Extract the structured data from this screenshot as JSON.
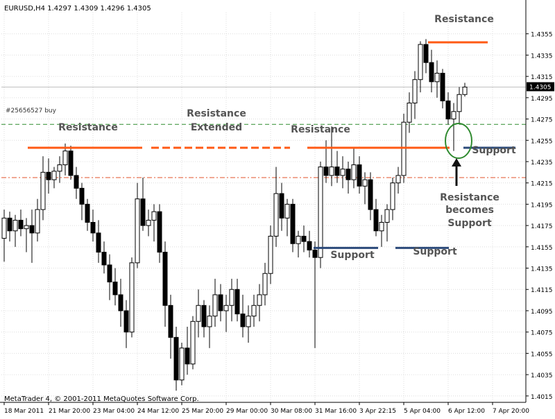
{
  "chart_data": {
    "type": "candlestick",
    "header": "EURUSD,H4  1.4297 1.4309 1.4296 1.4305",
    "order_label": "#25656527 buy",
    "copyright": "MetaTrader 4, © 2001-2011 MetaQuotes Software Corp.",
    "current_price": "1.4305",
    "ylim": [
      1.4009,
      1.4375
    ],
    "y_ticks": [
      "1.4355",
      "1.4335",
      "1.4315",
      "1.4295",
      "1.4275",
      "1.4255",
      "1.4235",
      "1.4215",
      "1.4195",
      "1.4175",
      "1.4155",
      "1.4135",
      "1.4115",
      "1.4095",
      "1.4075",
      "1.4055",
      "1.4035",
      "1.4015"
    ],
    "x_ticks": [
      {
        "i": 0,
        "label": "18 Mar 2011"
      },
      {
        "i": 8,
        "label": "21 Mar 20:00"
      },
      {
        "i": 16,
        "label": "23 Mar 04:00"
      },
      {
        "i": 24,
        "label": "24 Mar 12:00"
      },
      {
        "i": 32,
        "label": "25 Mar 20:00"
      },
      {
        "i": 40,
        "label": "29 Mar 00:00"
      },
      {
        "i": 48,
        "label": "30 Mar 08:00"
      },
      {
        "i": 56,
        "label": "31 Mar 16:00"
      },
      {
        "i": 64,
        "label": "3 Apr 22:15"
      },
      {
        "i": 72,
        "label": "5 Apr 04:00"
      },
      {
        "i": 80,
        "label": "6 Apr 12:00"
      },
      {
        "i": 88,
        "label": "7 Apr 20:00"
      }
    ],
    "candles": [
      [
        1.4163,
        1.419,
        1.4141,
        1.4182
      ],
      [
        1.4182,
        1.4188,
        1.416,
        1.417
      ],
      [
        1.417,
        1.4185,
        1.4155,
        1.418
      ],
      [
        1.418,
        1.419,
        1.4165,
        1.4172
      ],
      [
        1.4172,
        1.4182,
        1.415,
        1.4175
      ],
      [
        1.4175,
        1.419,
        1.414,
        1.4168
      ],
      [
        1.4168,
        1.42,
        1.416,
        1.419
      ],
      [
        1.419,
        1.424,
        1.418,
        1.4225
      ],
      [
        1.4225,
        1.4238,
        1.4205,
        1.4218
      ],
      [
        1.4218,
        1.423,
        1.421,
        1.4226
      ],
      [
        1.4226,
        1.424,
        1.4215,
        1.4232
      ],
      [
        1.4232,
        1.4252,
        1.4222,
        1.4245
      ],
      [
        1.4245,
        1.425,
        1.4218,
        1.4222
      ],
      [
        1.4222,
        1.423,
        1.42,
        1.421
      ],
      [
        1.421,
        1.4215,
        1.418,
        1.4195
      ],
      [
        1.4195,
        1.42,
        1.417,
        1.4178
      ],
      [
        1.4178,
        1.419,
        1.416,
        1.4168
      ],
      [
        1.4168,
        1.418,
        1.414,
        1.415
      ],
      [
        1.415,
        1.416,
        1.413,
        1.4138
      ],
      [
        1.4138,
        1.4148,
        1.4105,
        1.4122
      ],
      [
        1.4122,
        1.4135,
        1.41,
        1.411
      ],
      [
        1.411,
        1.4125,
        1.408,
        1.4095
      ],
      [
        1.4095,
        1.4105,
        1.406,
        1.4075
      ],
      [
        1.4075,
        1.4145,
        1.407,
        1.414
      ],
      [
        1.414,
        1.4215,
        1.4135,
        1.42
      ],
      [
        1.42,
        1.422,
        1.417,
        1.4175
      ],
      [
        1.4175,
        1.419,
        1.4165,
        1.418
      ],
      [
        1.418,
        1.4195,
        1.416,
        1.4188
      ],
      [
        1.4188,
        1.4195,
        1.414,
        1.415
      ],
      [
        1.415,
        1.416,
        1.408,
        1.41
      ],
      [
        1.41,
        1.411,
        1.405,
        1.407
      ],
      [
        1.407,
        1.408,
        1.402,
        1.403
      ],
      [
        1.403,
        1.4065,
        1.4025,
        1.406
      ],
      [
        1.406,
        1.408,
        1.4035,
        1.4045
      ],
      [
        1.4045,
        1.409,
        1.404,
        1.4085
      ],
      [
        1.4085,
        1.4115,
        1.407,
        1.41
      ],
      [
        1.41,
        1.4105,
        1.407,
        1.408
      ],
      [
        1.408,
        1.41,
        1.406,
        1.409
      ],
      [
        1.409,
        1.4125,
        1.408,
        1.411
      ],
      [
        1.411,
        1.412,
        1.4085,
        1.4095
      ],
      [
        1.4095,
        1.411,
        1.4075,
        1.41
      ],
      [
        1.41,
        1.4125,
        1.4085,
        1.4115
      ],
      [
        1.4115,
        1.4125,
        1.4085,
        1.4092
      ],
      [
        1.4092,
        1.411,
        1.407,
        1.408
      ],
      [
        1.408,
        1.41,
        1.4065,
        1.409
      ],
      [
        1.409,
        1.411,
        1.408,
        1.41
      ],
      [
        1.41,
        1.412,
        1.4085,
        1.411
      ],
      [
        1.411,
        1.414,
        1.41,
        1.413
      ],
      [
        1.413,
        1.4175,
        1.412,
        1.4165
      ],
      [
        1.4165,
        1.423,
        1.4155,
        1.4205
      ],
      [
        1.4205,
        1.4215,
        1.417,
        1.4182
      ],
      [
        1.4182,
        1.42,
        1.4165,
        1.4195
      ],
      [
        1.4195,
        1.42,
        1.415,
        1.4158
      ],
      [
        1.4158,
        1.417,
        1.4145,
        1.4165
      ],
      [
        1.4165,
        1.4175,
        1.415,
        1.416
      ],
      [
        1.416,
        1.417,
        1.4145,
        1.4152
      ],
      [
        1.4152,
        1.416,
        1.406,
        1.4145
      ],
      [
        1.4145,
        1.4235,
        1.4135,
        1.423
      ],
      [
        1.423,
        1.4255,
        1.4215,
        1.4222
      ],
      [
        1.4222,
        1.4268,
        1.4212,
        1.423
      ],
      [
        1.423,
        1.4245,
        1.4215,
        1.4222
      ],
      [
        1.4222,
        1.424,
        1.421,
        1.4228
      ],
      [
        1.4228,
        1.4235,
        1.4205,
        1.4218
      ],
      [
        1.4218,
        1.4248,
        1.421,
        1.4232
      ],
      [
        1.4232,
        1.424,
        1.4205,
        1.4212
      ],
      [
        1.4212,
        1.4225,
        1.4195,
        1.4218
      ],
      [
        1.4218,
        1.4225,
        1.418,
        1.419
      ],
      [
        1.419,
        1.42,
        1.4165,
        1.417
      ],
      [
        1.417,
        1.4185,
        1.4155,
        1.4178
      ],
      [
        1.4178,
        1.4195,
        1.416,
        1.419
      ],
      [
        1.419,
        1.422,
        1.418,
        1.4215
      ],
      [
        1.4215,
        1.423,
        1.4205,
        1.4222
      ],
      [
        1.4222,
        1.428,
        1.4215,
        1.4272
      ],
      [
        1.4272,
        1.43,
        1.4262,
        1.429
      ],
      [
        1.429,
        1.432,
        1.4275,
        1.4312
      ],
      [
        1.4312,
        1.4348,
        1.43,
        1.4345
      ],
      [
        1.4345,
        1.435,
        1.4318,
        1.4328
      ],
      [
        1.4328,
        1.434,
        1.43,
        1.431
      ],
      [
        1.431,
        1.433,
        1.4295,
        1.4318
      ],
      [
        1.4318,
        1.4322,
        1.4285,
        1.4292
      ],
      [
        1.4292,
        1.43,
        1.427,
        1.4275
      ],
      [
        1.4275,
        1.429,
        1.4245,
        1.4282
      ],
      [
        1.4282,
        1.4305,
        1.427,
        1.4298
      ],
      [
        1.4298,
        1.4309,
        1.4296,
        1.4305
      ]
    ],
    "levels": [
      {
        "label": "1.4305",
        "color": "#c0c0c0",
        "style": "solid"
      },
      {
        "label": "order",
        "color": "#2e8b2e",
        "style": "dash"
      },
      {
        "label": "stop",
        "color": "#e0502a",
        "style": "dashdot"
      }
    ],
    "annotations": [
      {
        "text": "Resistance",
        "color": "#555555"
      },
      {
        "text": "Resistance",
        "color": "#555555"
      },
      {
        "text": "Resistance",
        "color": "#555555"
      },
      {
        "text": "Resistance",
        "color": "#555555"
      },
      {
        "text": "Extended",
        "color": "#555555"
      },
      {
        "text": "Support",
        "color": "#555555"
      },
      {
        "text": "Support",
        "color": "#555555"
      },
      {
        "text": "Support",
        "color": "#555555"
      },
      {
        "text": "Resistance",
        "color": "#555555"
      },
      {
        "text": "becomes",
        "color": "#555555"
      },
      {
        "text": "Support",
        "color": "#555555"
      }
    ],
    "colors": {
      "resistance_line": "#ff5a14",
      "support_line": "#2b4a7a",
      "circle": "#2f8a2f",
      "arrow": "#111111",
      "text": "#555555",
      "candle": "#000000",
      "grid": "#dcdcdc",
      "current_price_bg": "#000000",
      "current_price_fg": "#ffffff"
    }
  }
}
